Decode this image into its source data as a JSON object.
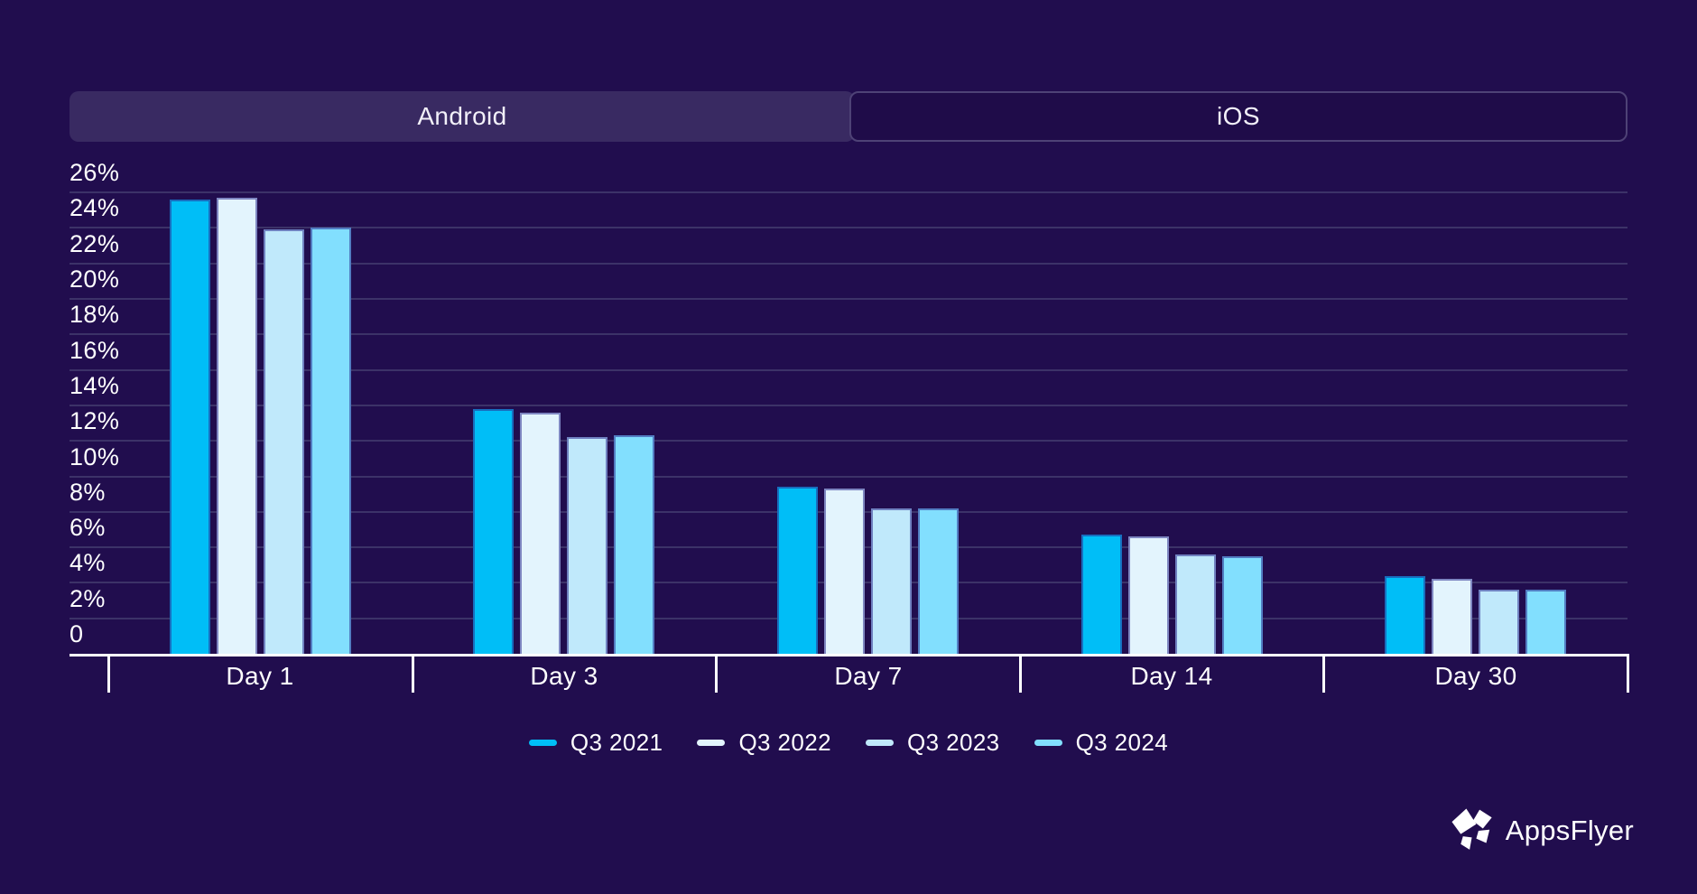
{
  "page": {
    "background": "#210D4E",
    "gridline_color": "#3C3268",
    "axis_color": "#FFFFFF",
    "text_color": "#FFFFFF"
  },
  "tabs": [
    {
      "label": "Android",
      "active": false
    },
    {
      "label": "iOS",
      "active": true
    }
  ],
  "chart_data": {
    "type": "bar",
    "title": "",
    "categories": [
      "Day 1",
      "Day 3",
      "Day 7",
      "Day 14",
      "Day 30"
    ],
    "series": [
      {
        "name": "Q3 2021",
        "color": "#00BEF7",
        "values": [
          25.6,
          13.8,
          9.4,
          6.7,
          4.4
        ]
      },
      {
        "name": "Q3 2022",
        "color": "#E3F4FD",
        "values": [
          25.7,
          13.6,
          9.3,
          6.6,
          4.2
        ]
      },
      {
        "name": "Q3 2023",
        "color": "#C0E9FB",
        "values": [
          23.9,
          12.2,
          8.2,
          5.6,
          3.6
        ]
      },
      {
        "name": "Q3 2024",
        "color": "#82DFFE",
        "values": [
          24.0,
          12.3,
          8.2,
          5.5,
          3.6
        ]
      }
    ],
    "xlabel": "",
    "ylabel": "",
    "ylim": [
      0,
      26
    ],
    "y_step": 2,
    "y_tick_labels": [
      "26%",
      "24%",
      "22%",
      "20%",
      "18%",
      "16%",
      "14%",
      "12%",
      "10%",
      "8%",
      "6%",
      "4%",
      "2%",
      "0"
    ],
    "value_unit": "%",
    "grid": true,
    "legend_position": "bottom"
  },
  "logo": {
    "text": "AppsFlyer"
  }
}
